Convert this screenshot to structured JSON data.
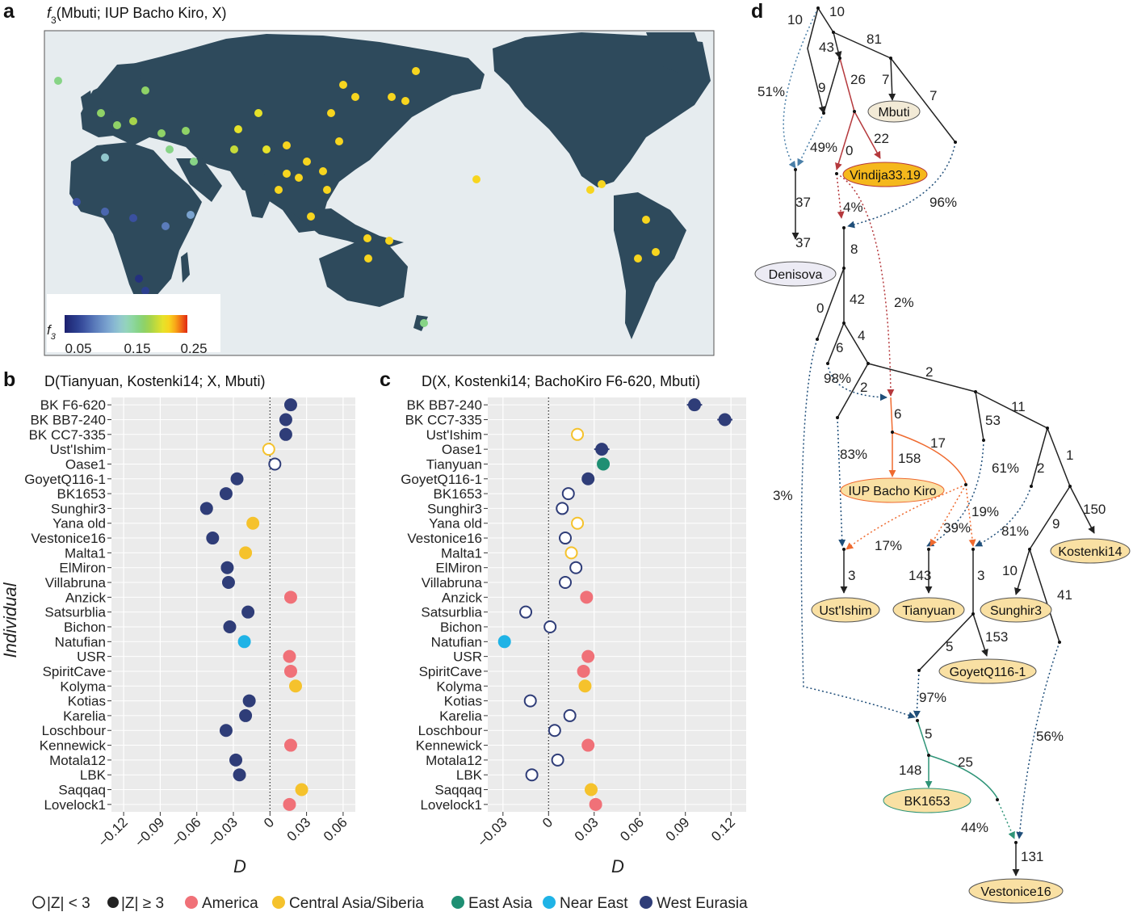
{
  "panel_a": {
    "letter": "a",
    "title_prefix": "f",
    "title_sub": "3",
    "title_rest": "(Mbuti; IUP Bacho Kiro, X)",
    "colorbar": {
      "label": "f",
      "label_sub": "3",
      "ticks": [
        "0.05",
        "0.15",
        "0.25"
      ],
      "colors": [
        "#1b1f6e",
        "#24307f",
        "#2c3f8f",
        "#3a509f",
        "#4a66ae",
        "#5b7cbb",
        "#6b90c6",
        "#7aa3cf",
        "#87b6d2",
        "#91c7cd",
        "#93d3bd",
        "#8ed6a3",
        "#87d486",
        "#8fd267",
        "#a6d44c",
        "#c6db3a",
        "#e6e22a",
        "#f7d51f",
        "#f9a818",
        "#f06a14",
        "#e02812"
      ]
    },
    "colors": {
      "land": "#2e4a5c",
      "ocean": "#e6ecef"
    }
  },
  "panel_b": {
    "letter": "b",
    "title": "D(Tianyuan, Kostenki14; X, Mbuti)",
    "ylabel": "Individual",
    "xlabel": "D"
  },
  "panel_c": {
    "letter": "c",
    "title": "D(X, Kostenki14; BachoKiro F6-620, Mbuti)",
    "xlabel": "D"
  },
  "chart_data": [
    {
      "type": "scatter",
      "title": "D(Tianyuan, Kostenki14; X, Mbuti)",
      "xlabel": "D",
      "ylabel": "Individual",
      "xlim": [
        -0.13,
        0.07
      ],
      "xticks": [
        "−0.12",
        "−0.09",
        "−0.06",
        "−0.03",
        "0",
        "0.03",
        "0.06"
      ],
      "xtick_values": [
        -0.12,
        -0.09,
        -0.06,
        -0.03,
        0,
        0.03,
        0.06
      ],
      "categories": [
        "BK F6-620",
        "BK BB7-240",
        "BK CC7-335",
        "Ust'Ishim",
        "Oase1",
        "GoyetQ116-1",
        "BK1653",
        "Sunghir3",
        "Yana old",
        "Vestonice16",
        "Malta1",
        "ElMiron",
        "Villabruna",
        "Anzick",
        "Satsurblia",
        "Bichon",
        "Natufian",
        "USR",
        "SpiritCave",
        "Kolyma",
        "Kotias",
        "Karelia",
        "Loschbour",
        "Kennewick",
        "Motala12",
        "LBK",
        "Saqqaq",
        "Lovelock1"
      ],
      "values": [
        0.017,
        0.013,
        0.013,
        -0.001,
        0.004,
        -0.027,
        -0.036,
        -0.052,
        -0.014,
        -0.047,
        -0.02,
        -0.035,
        -0.034,
        0.017,
        -0.018,
        -0.033,
        -0.021,
        0.016,
        0.017,
        0.021,
        -0.017,
        -0.02,
        -0.036,
        0.017,
        -0.028,
        -0.025,
        0.026,
        0.016
      ],
      "errors": [
        0.003,
        0.003,
        0.003,
        0.003,
        0.004,
        0.003,
        0.003,
        0.003,
        0.003,
        0.003,
        0.003,
        0.003,
        0.003,
        0.003,
        0.003,
        0.003,
        0.003,
        0.003,
        0.003,
        0.003,
        0.003,
        0.003,
        0.003,
        0.003,
        0.003,
        0.003,
        0.003,
        0.003
      ],
      "significant": [
        true,
        true,
        true,
        false,
        false,
        true,
        true,
        true,
        true,
        true,
        true,
        true,
        true,
        true,
        true,
        true,
        true,
        true,
        true,
        true,
        true,
        true,
        true,
        true,
        true,
        true,
        true,
        true
      ],
      "groups": [
        "West Eurasia",
        "West Eurasia",
        "West Eurasia",
        "Central Asia/Siberia",
        "West Eurasia",
        "West Eurasia",
        "West Eurasia",
        "West Eurasia",
        "Central Asia/Siberia",
        "West Eurasia",
        "Central Asia/Siberia",
        "West Eurasia",
        "West Eurasia",
        "America",
        "West Eurasia",
        "West Eurasia",
        "Near East",
        "America",
        "America",
        "Central Asia/Siberia",
        "West Eurasia",
        "West Eurasia",
        "West Eurasia",
        "America",
        "West Eurasia",
        "West Eurasia",
        "Central Asia/Siberia",
        "America"
      ]
    },
    {
      "type": "scatter",
      "title": "D(X, Kostenki14; BachoKiro F6-620, Mbuti)",
      "xlabel": "D",
      "xlim": [
        -0.04,
        0.13
      ],
      "xticks": [
        "−0.03",
        "0",
        "0.03",
        "0.06",
        "0.09",
        "0.12"
      ],
      "xtick_values": [
        -0.03,
        0,
        0.03,
        0.06,
        0.09,
        0.12
      ],
      "categories": [
        "BK BB7-240",
        "BK CC7-335",
        "Ust'Ishim",
        "Oase1",
        "Tianyuan",
        "GoyetQ116-1",
        "BK1653",
        "Sunghir3",
        "Yana old",
        "Vestonice16",
        "Malta1",
        "ElMiron",
        "Villabruna",
        "Anzick",
        "Satsurblia",
        "Bichon",
        "Natufian",
        "USR",
        "SpiritCave",
        "Kolyma",
        "Kotias",
        "Karelia",
        "Loschbour",
        "Kennewick",
        "Motala12",
        "LBK",
        "Saqqaq",
        "Lovelock1"
      ],
      "values": [
        0.096,
        0.116,
        0.019,
        0.035,
        0.036,
        0.026,
        0.013,
        0.009,
        0.019,
        0.011,
        0.015,
        0.018,
        0.011,
        0.025,
        -0.015,
        0.001,
        -0.029,
        0.026,
        0.023,
        0.024,
        -0.012,
        0.014,
        0.004,
        0.026,
        0.006,
        -0.011,
        0.028,
        0.031
      ],
      "errors": [
        0.005,
        0.005,
        0.004,
        0.005,
        0.004,
        0.004,
        0.004,
        0.004,
        0.004,
        0.004,
        0.004,
        0.004,
        0.004,
        0.004,
        0.004,
        0.004,
        0.004,
        0.004,
        0.004,
        0.004,
        0.004,
        0.004,
        0.004,
        0.004,
        0.004,
        0.004,
        0.004,
        0.004
      ],
      "significant": [
        true,
        true,
        false,
        true,
        true,
        true,
        false,
        false,
        false,
        false,
        false,
        false,
        false,
        true,
        false,
        false,
        true,
        true,
        true,
        true,
        false,
        false,
        false,
        true,
        false,
        false,
        true,
        true
      ],
      "groups": [
        "West Eurasia",
        "West Eurasia",
        "Central Asia/Siberia",
        "West Eurasia",
        "East Asia",
        "West Eurasia",
        "West Eurasia",
        "West Eurasia",
        "Central Asia/Siberia",
        "West Eurasia",
        "Central Asia/Siberia",
        "West Eurasia",
        "West Eurasia",
        "America",
        "West Eurasia",
        "West Eurasia",
        "Near East",
        "America",
        "America",
        "Central Asia/Siberia",
        "West Eurasia",
        "West Eurasia",
        "West Eurasia",
        "America",
        "West Eurasia",
        "West Eurasia",
        "Central Asia/Siberia",
        "America"
      ]
    }
  ],
  "legend": {
    "open_label": "|Z| < 3",
    "filled_label": "|Z| ≥ 3",
    "groups": [
      {
        "label": "America",
        "color": "#f07178"
      },
      {
        "label": "Central Asia/Siberia",
        "color": "#f5c22c"
      },
      {
        "label": "East Asia",
        "color": "#1f8f73"
      },
      {
        "label": "Near East",
        "color": "#1fb3e6"
      },
      {
        "label": "West Eurasia",
        "color": "#2f3d78"
      }
    ]
  },
  "panel_d": {
    "letter": "d",
    "nodes": {
      "mbuti": "Mbuti",
      "vindija": "Vindija33.19",
      "denisova": "Denisova",
      "iup": "IUP Bacho Kiro",
      "ustishim": "Ust'Ishim",
      "tianyuan": "Tianyuan",
      "sunghir": "Sunghir3",
      "kostenki": "Kostenki14",
      "goyet": "GoyetQ116-1",
      "bk1653": "BK1653",
      "vestonice": "Vestonice16"
    },
    "edge_labels": [
      "10",
      "10",
      "43",
      "81",
      "9",
      "26",
      "7",
      "7",
      "51%",
      "49%",
      "0",
      "22",
      "96%",
      "4%",
      "37",
      "37",
      "8",
      "2%",
      "0",
      "42",
      "4",
      "6",
      "98%",
      "2",
      "2",
      "11",
      "6",
      "53",
      "83%",
      "158",
      "17",
      "61%",
      "2",
      "1",
      "19%",
      "39%",
      "81%",
      "9",
      "150",
      "17%",
      "3",
      "143",
      "3",
      "10",
      "41",
      "3%",
      "5",
      "153",
      "97%",
      "5",
      "56%",
      "148",
      "25",
      "44%",
      "131"
    ],
    "colors": {
      "black": "#222222",
      "red": "#b5393d",
      "blue": "#1f4e79",
      "steel": "#4a7fa8",
      "orange": "#ef6a2f",
      "teal": "#2e9477"
    }
  }
}
